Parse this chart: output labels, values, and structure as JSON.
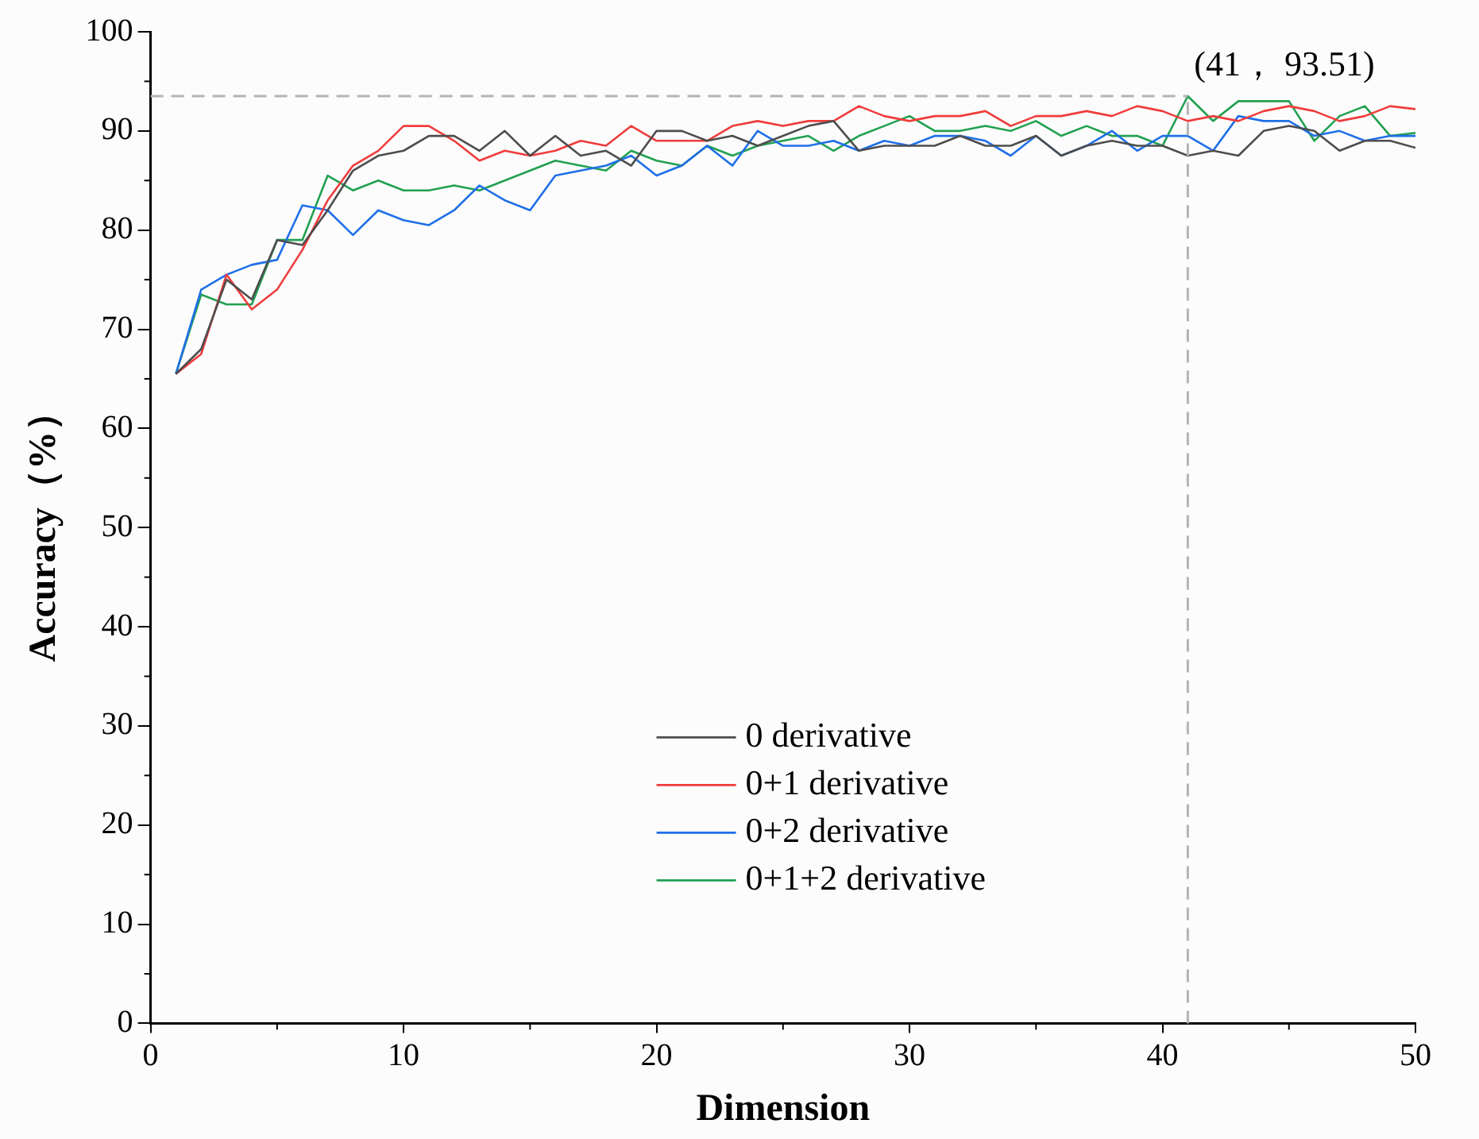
{
  "chart_data": {
    "type": "line",
    "xlabel": "Dimension",
    "ylabel": "Accuracy（%）",
    "x": [
      1,
      2,
      3,
      4,
      5,
      6,
      7,
      8,
      9,
      10,
      11,
      12,
      13,
      14,
      15,
      16,
      17,
      18,
      19,
      20,
      21,
      22,
      23,
      24,
      25,
      26,
      27,
      28,
      29,
      30,
      31,
      32,
      33,
      34,
      35,
      36,
      37,
      38,
      39,
      40,
      41,
      42,
      43,
      44,
      45,
      46,
      47,
      48,
      49,
      50
    ],
    "series": [
      {
        "name": "0 derivative",
        "color": "#4d4d4d",
        "values": [
          65.5,
          68,
          75,
          73,
          79,
          78.5,
          82,
          86,
          87.5,
          88,
          89.5,
          89.5,
          88,
          90,
          87.5,
          89.5,
          87.5,
          88,
          86.5,
          90,
          90,
          89,
          89.5,
          88.5,
          89.5,
          90.5,
          91,
          88,
          88.5,
          88.5,
          88.5,
          89.5,
          88.5,
          88.5,
          89.5,
          87.5,
          88.5,
          89,
          88.5,
          88.5,
          87.5,
          88,
          87.5,
          90,
          90.5,
          90,
          88,
          89,
          89,
          88.3
        ]
      },
      {
        "name": "0+1 derivative",
        "color": "#f03c3c",
        "values": [
          65.5,
          67.5,
          75.5,
          72,
          74,
          78,
          83,
          86.5,
          88,
          90.5,
          90.5,
          89,
          87,
          88,
          87.5,
          88,
          89,
          88.5,
          90.5,
          89,
          89,
          89,
          90.5,
          91,
          90.5,
          91,
          91,
          92.5,
          91.5,
          91,
          91.5,
          91.5,
          92,
          90.5,
          91.5,
          91.5,
          92,
          91.5,
          92.5,
          92,
          91,
          91.5,
          91,
          92,
          92.5,
          92,
          91,
          91.5,
          92.5,
          92.2
        ]
      },
      {
        "name": "0+2 derivative",
        "color": "#1f6fe8",
        "values": [
          65.5,
          74,
          75.5,
          76.5,
          77,
          82.5,
          82,
          79.5,
          82,
          81,
          80.5,
          82,
          84.5,
          83,
          82,
          85.5,
          86,
          86.5,
          87.5,
          85.5,
          86.5,
          88.5,
          86.5,
          90,
          88.5,
          88.5,
          89,
          88,
          89,
          88.5,
          89.5,
          89.5,
          89,
          87.5,
          89.5,
          87.5,
          88.5,
          90,
          88,
          89.5,
          89.5,
          88,
          91.5,
          91,
          91,
          89.5,
          90,
          89,
          89.5,
          89.5
        ]
      },
      {
        "name": "0+1+2 derivative",
        "color": "#22a050",
        "values": [
          65.5,
          73.5,
          72.5,
          72.5,
          79,
          79,
          85.5,
          84,
          85,
          84,
          84,
          84.5,
          84,
          85,
          86,
          87,
          86.5,
          86,
          88,
          87,
          86.5,
          88.5,
          87.5,
          88.5,
          89,
          89.5,
          88,
          89.5,
          90.5,
          91.5,
          90,
          90,
          90.5,
          90,
          91,
          89.5,
          90.5,
          89.5,
          89.5,
          88.5,
          93.51,
          91,
          93,
          93,
          93,
          89,
          91.5,
          92.5,
          89.5,
          89.8
        ]
      }
    ],
    "xlim": [
      0,
      50
    ],
    "xticks": [
      0,
      10,
      20,
      30,
      40,
      50
    ],
    "ylim": [
      0,
      100
    ],
    "yticks": [
      0,
      10,
      20,
      30,
      40,
      50,
      60,
      70,
      80,
      90,
      100
    ],
    "ref_lines": [
      {
        "axis": "y",
        "value": 93.51,
        "color": "#b4b4b4",
        "line_style": "dashed"
      },
      {
        "axis": "x",
        "value": 41,
        "color": "#b4b4b4",
        "line_style": "dashed"
      }
    ],
    "annotations": [
      {
        "text": "(41， 93.51)",
        "x": 41,
        "y": 93.51
      }
    ],
    "legend": "bottom",
    "grid": false,
    "marker": "none",
    "line_style": "solid"
  }
}
